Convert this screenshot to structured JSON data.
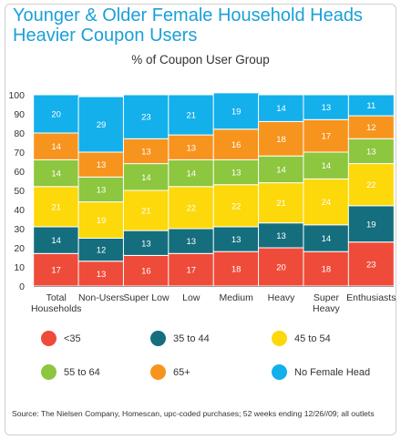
{
  "title_lines": [
    "Younger & Older Female Household Heads",
    "Heavier Coupon Users"
  ],
  "source": "Source: The Nielsen Company, Homescan, upc-coded purchases; 52 weeks ending 12/26//09; all outlets",
  "chart_data": {
    "type": "bar",
    "stacked": true,
    "title": "% of Coupon User Group",
    "categories": [
      [
        "Total",
        "Households"
      ],
      [
        "Non-Users"
      ],
      [
        "Super Low"
      ],
      [
        "Low"
      ],
      [
        "Medium"
      ],
      [
        "Heavy"
      ],
      [
        "Super",
        "Heavy"
      ],
      [
        "Enthusiasts"
      ]
    ],
    "ylim": [
      0,
      100
    ],
    "yticks": [
      0,
      10,
      20,
      30,
      40,
      50,
      60,
      70,
      80,
      90,
      100
    ],
    "grid": false,
    "legend_position": "bottom",
    "series": [
      {
        "name": "<35",
        "color": "#ef4b3a",
        "values": [
          17,
          13,
          16,
          17,
          18,
          20,
          18,
          23
        ]
      },
      {
        "name": "35 to 44",
        "color": "#156e7e",
        "values": [
          14,
          12,
          13,
          13,
          13,
          13,
          14,
          19
        ]
      },
      {
        "name": "45 to 54",
        "color": "#fdd80a",
        "values": [
          21,
          19,
          21,
          22,
          22,
          21,
          24,
          22
        ]
      },
      {
        "name": "55 to 64",
        "color": "#8dc63f",
        "values": [
          14,
          13,
          14,
          14,
          13,
          14,
          14,
          13
        ]
      },
      {
        "name": "65+",
        "color": "#f7941d",
        "values": [
          14,
          13,
          13,
          13,
          16,
          18,
          17,
          12
        ]
      },
      {
        "name": "No Female Head",
        "color": "#13b0ec",
        "values": [
          20,
          29,
          23,
          21,
          19,
          14,
          13,
          11
        ]
      }
    ]
  }
}
